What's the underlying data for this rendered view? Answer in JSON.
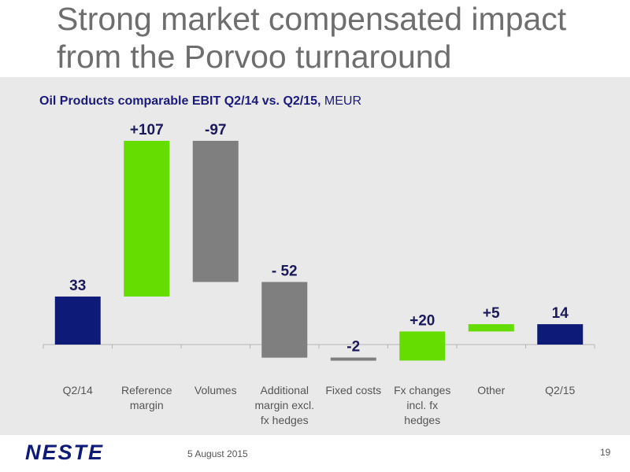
{
  "slide": {
    "title_line1": "Strong market compensated impact",
    "title_line2": "from the Porvoo turnaround"
  },
  "chart_data": {
    "type": "bar",
    "title_bold": "Oil Products comparable EBIT Q2/14 vs. Q2/15,",
    "title_unit": " MEUR",
    "categories": [
      [
        "Q2/14"
      ],
      [
        "Reference",
        "margin"
      ],
      [
        "Volumes"
      ],
      [
        "Additional",
        "margin excl.",
        "fx hedges"
      ],
      [
        "Fixed costs"
      ],
      [
        "Fx changes",
        "incl. fx",
        "hedges"
      ],
      [
        "Other"
      ],
      [
        "Q2/15"
      ]
    ],
    "steps": [
      {
        "label": "33",
        "kind": "total",
        "start": 0,
        "end": 33
      },
      {
        "label": "+107",
        "kind": "increase",
        "start": 33,
        "end": 140
      },
      {
        "label": "-97",
        "kind": "decrease",
        "start": 140,
        "end": 43
      },
      {
        "label": "- 52",
        "kind": "decrease",
        "start": 43,
        "end": -9
      },
      {
        "label": "-2",
        "kind": "decrease",
        "start": -9,
        "end": -11
      },
      {
        "label": "+20",
        "kind": "increase",
        "start": -11,
        "end": 9
      },
      {
        "label": "+5",
        "kind": "increase",
        "start": 9,
        "end": 14
      },
      {
        "label": "14",
        "kind": "total",
        "start": 0,
        "end": 14
      }
    ],
    "ylim": [
      -15,
      150
    ],
    "colors": {
      "total": "#0d1a78",
      "increase": "#66dd00",
      "decrease": "#7f7f7f",
      "label": "#1a1a5a"
    }
  },
  "footer": {
    "logo_text": "NESTE",
    "date": "5 August 2015",
    "page": "19"
  }
}
